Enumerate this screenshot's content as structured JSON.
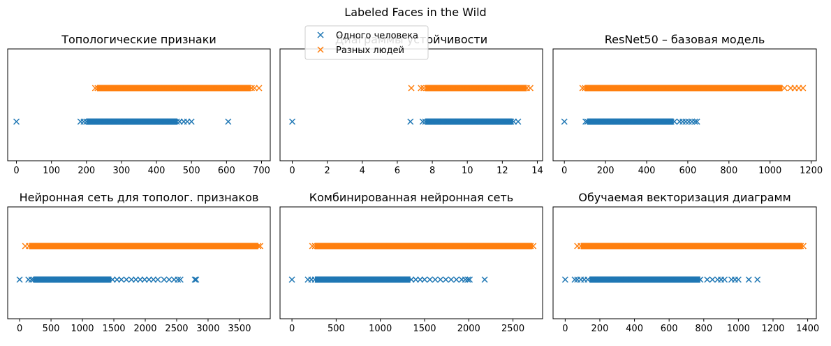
{
  "figure": {
    "suptitle": "Labeled Faces in the Wild"
  },
  "legend": {
    "placement": "top-center",
    "items": [
      {
        "label": "Одного человека",
        "color": "#1f77b4",
        "marker": "x"
      },
      {
        "label": "Разных людей",
        "color": "#ff7f0e",
        "marker": "x"
      }
    ]
  },
  "chart_data": [
    {
      "type": "scatter",
      "title": "Топологические признаки",
      "xlim": [
        -25,
        725
      ],
      "xticks": [
        0,
        100,
        200,
        300,
        400,
        500,
        600,
        700
      ],
      "y_ticks_visible": false,
      "grid": false,
      "series": [
        {
          "name": "Одного человека",
          "color": "#1f77b4",
          "y": 0,
          "points": [
            0,
            183,
            192,
            200,
            206,
            214,
            222,
            230,
            238,
            250,
            265,
            280,
            295,
            310,
            325,
            340,
            355,
            370,
            385,
            400,
            412,
            425,
            438,
            448,
            458,
            466,
            478,
            488,
            500,
            605
          ],
          "dense_range": [
            200,
            460
          ]
        },
        {
          "name": "Разных людей",
          "color": "#ff7f0e",
          "y": 1,
          "points": [
            225,
            232,
            240,
            260,
            280,
            300,
            320,
            340,
            360,
            380,
            400,
            420,
            440,
            460,
            480,
            500,
            520,
            535,
            548,
            560,
            575,
            590,
            605,
            620,
            635,
            650,
            662,
            672,
            680,
            693
          ],
          "dense_range": [
            230,
            670
          ]
        }
      ]
    },
    {
      "type": "scatter",
      "title": "Диаграммы устойчивости",
      "xlim": [
        -0.7,
        14.3
      ],
      "xticks": [
        0,
        2,
        4,
        6,
        8,
        10,
        12,
        14
      ],
      "y_ticks_visible": false,
      "grid": false,
      "series": [
        {
          "name": "Одного человека",
          "color": "#1f77b4",
          "y": 0,
          "points": [
            0,
            6.75,
            7.45,
            7.6,
            7.8,
            8.0,
            8.3,
            8.6,
            8.9,
            9.2,
            9.5,
            9.8,
            10.1,
            10.4,
            10.7,
            11.0,
            11.3,
            11.6,
            11.9,
            12.1,
            12.3,
            12.5,
            12.65,
            12.9
          ],
          "dense_range": [
            7.6,
            12.6
          ]
        },
        {
          "name": "Разных людей",
          "color": "#ff7f0e",
          "y": 1,
          "points": [
            6.8,
            7.35,
            7.5,
            7.7,
            8.0,
            8.3,
            8.6,
            9.0,
            9.4,
            9.8,
            10.2,
            10.6,
            11.0,
            11.4,
            11.8,
            12.2,
            12.6,
            12.9,
            13.2,
            13.4,
            13.6
          ],
          "dense_range": [
            7.6,
            13.4
          ]
        }
      ]
    },
    {
      "type": "scatter",
      "title": "ResNet50 – базовая модель",
      "xlim": [
        -55,
        1225
      ],
      "xticks": [
        0,
        200,
        400,
        600,
        800,
        1000,
        1200
      ],
      "y_ticks_visible": false,
      "grid": false,
      "series": [
        {
          "name": "Одного человека",
          "color": "#1f77b4",
          "y": 0,
          "points": [
            0,
            103,
            112,
            125,
            140,
            160,
            180,
            200,
            230,
            260,
            290,
            320,
            350,
            380,
            410,
            440,
            470,
            490,
            505,
            520,
            535,
            560,
            575,
            590,
            605,
            620,
            635,
            645
          ],
          "dense_range": [
            110,
            530
          ]
        },
        {
          "name": "Разных людей",
          "color": "#ff7f0e",
          "y": 1,
          "points": [
            88,
            100,
            115,
            140,
            180,
            220,
            260,
            300,
            350,
            400,
            450,
            500,
            550,
            600,
            650,
            700,
            750,
            800,
            850,
            900,
            950,
            1000,
            1040,
            1070,
            1100,
            1120,
            1140,
            1160
          ],
          "dense_range": [
            100,
            1060
          ]
        }
      ]
    },
    {
      "type": "scatter",
      "title": "Нейронная сеть для тополог. признаков",
      "xlim": [
        -190,
        3990
      ],
      "xticks": [
        0,
        500,
        1000,
        1500,
        2000,
        2500,
        3000,
        3500
      ],
      "y_ticks_visible": false,
      "grid": false,
      "series": [
        {
          "name": "Одного человека",
          "color": "#1f77b4",
          "y": 0,
          "points": [
            0,
            140,
            190,
            220,
            260,
            300,
            400,
            500,
            600,
            700,
            800,
            900,
            1000,
            1100,
            1200,
            1300,
            1400,
            1480,
            1550,
            1620,
            1700,
            1780,
            1850,
            1920,
            1990,
            2060,
            2130,
            2200,
            2300,
            2380,
            2460,
            2520,
            2560,
            2790,
            2810
          ],
          "dense_range": [
            220,
            1460
          ]
        },
        {
          "name": "Разных людей",
          "color": "#ff7f0e",
          "y": 1,
          "points": [
            90,
            150,
            200,
            300,
            500,
            700,
            900,
            1100,
            1300,
            1500,
            1700,
            1900,
            2100,
            2300,
            2500,
            2700,
            2900,
            3100,
            3300,
            3500,
            3700,
            3800,
            3830
          ],
          "dense_range": [
            150,
            3800
          ]
        }
      ]
    },
    {
      "type": "scatter",
      "title": "Комбинированная нейронная сеть",
      "xlim": [
        -135,
        2835
      ],
      "xticks": [
        0,
        500,
        1000,
        1500,
        2000,
        2500
      ],
      "y_ticks_visible": false,
      "grid": false,
      "series": [
        {
          "name": "Одного человека",
          "color": "#1f77b4",
          "y": 0,
          "points": [
            0,
            180,
            220,
            260,
            300,
            400,
            500,
            600,
            700,
            800,
            900,
            1000,
            1100,
            1200,
            1300,
            1350,
            1400,
            1450,
            1500,
            1560,
            1620,
            1680,
            1740,
            1800,
            1860,
            1920,
            1960,
            1990,
            2010,
            2180
          ],
          "dense_range": [
            260,
            1340
          ]
        },
        {
          "name": "Разных людей",
          "color": "#ff7f0e",
          "y": 1,
          "points": [
            230,
            260,
            300,
            400,
            500,
            600,
            700,
            800,
            900,
            1000,
            1100,
            1200,
            1300,
            1400,
            1500,
            1600,
            1700,
            1800,
            1900,
            2000,
            2100,
            2200,
            2300,
            2400,
            2500,
            2600,
            2700,
            2730
          ],
          "dense_range": [
            260,
            2720
          ]
        }
      ]
    },
    {
      "type": "scatter",
      "title": "Обучаемая векторизация диаграмм",
      "xlim": [
        -70,
        1450
      ],
      "xticks": [
        0,
        200,
        400,
        600,
        800,
        1000,
        1200,
        1400
      ],
      "y_ticks_visible": false,
      "grid": false,
      "series": [
        {
          "name": "Одного человека",
          "color": "#1f77b4",
          "y": 0,
          "points": [
            0,
            55,
            70,
            90,
            110,
            130,
            160,
            200,
            260,
            320,
            380,
            440,
            500,
            560,
            620,
            680,
            740,
            780,
            820,
            850,
            880,
            900,
            920,
            960,
            980,
            1000,
            1060,
            1110
          ],
          "dense_range": [
            140,
            780
          ]
        },
        {
          "name": "Разных людей",
          "color": "#ff7f0e",
          "y": 1,
          "points": [
            70,
            90,
            120,
            160,
            200,
            260,
            320,
            380,
            440,
            500,
            560,
            620,
            680,
            740,
            800,
            860,
            920,
            980,
            1040,
            1100,
            1160,
            1220,
            1280,
            1330,
            1360,
            1375
          ],
          "dense_range": [
            90,
            1370
          ]
        }
      ]
    }
  ]
}
